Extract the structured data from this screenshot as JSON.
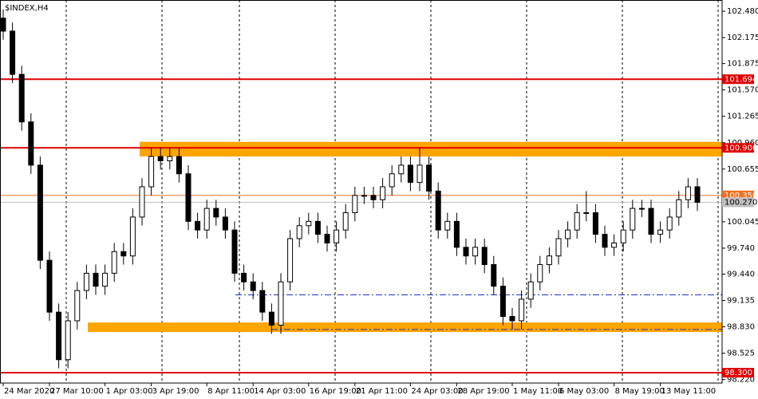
{
  "chart_data": {
    "type": "candlestick",
    "title": "$INDEX,H4",
    "categories": [
      "24 Mar 2020",
      null,
      null,
      null,
      null,
      "27 Mar 10:00",
      null,
      null,
      null,
      null,
      null,
      "1 Apr 03:00",
      null,
      null,
      null,
      null,
      "3 Apr 19:00",
      null,
      null,
      null,
      null,
      null,
      "8 Apr 11:00",
      null,
      null,
      null,
      null,
      "14 Apr 03:00",
      null,
      null,
      null,
      null,
      null,
      "16 Apr 19:00",
      null,
      null,
      null,
      null,
      "21 Apr 11:00",
      null,
      null,
      null,
      null,
      null,
      "24 Apr 03:00",
      null,
      null,
      null,
      null,
      "28 Apr 19:00",
      null,
      null,
      null,
      null,
      null,
      "1 May 11:00",
      null,
      null,
      null,
      null,
      "6 May 03:00",
      null,
      null,
      null,
      null,
      null,
      "8 May 19:00",
      null,
      null,
      null,
      null,
      "13 May 11:00",
      null,
      null,
      null,
      null
    ],
    "open": [
      102.4,
      102.25,
      101.75,
      101.2,
      100.7,
      99.6,
      99.0,
      98.45,
      98.9,
      99.25,
      99.45,
      99.3,
      99.45,
      99.7,
      99.65,
      100.1,
      100.45,
      100.8,
      100.75,
      100.8,
      100.6,
      100.05,
      99.95,
      100.2,
      100.1,
      99.95,
      99.45,
      99.35,
      99.25,
      99.0,
      98.85,
      99.35,
      99.85,
      100.0,
      100.05,
      99.9,
      99.8,
      99.95,
      100.15,
      100.35,
      100.35,
      100.3,
      100.45,
      100.6,
      100.7,
      100.5,
      100.7,
      100.4,
      99.95,
      100.05,
      99.75,
      99.65,
      99.75,
      99.55,
      99.3,
      98.95,
      98.9,
      99.15,
      99.35,
      99.55,
      99.65,
      99.85,
      99.95,
      100.15,
      100.15,
      99.9,
      99.75,
      99.8,
      99.95,
      100.2,
      100.2,
      99.9,
      99.95,
      100.1,
      100.3,
      100.45
    ],
    "high": [
      102.5,
      102.35,
      101.85,
      101.3,
      100.8,
      99.7,
      99.1,
      99.0,
      99.35,
      99.55,
      99.55,
      99.55,
      99.8,
      99.8,
      100.2,
      100.55,
      100.9,
      100.9,
      100.9,
      100.9,
      100.7,
      100.15,
      100.3,
      100.3,
      100.2,
      100.05,
      99.55,
      99.45,
      99.35,
      99.1,
      99.45,
      99.95,
      100.1,
      100.15,
      100.15,
      100.0,
      100.05,
      100.25,
      100.45,
      100.45,
      100.45,
      100.55,
      100.7,
      100.8,
      100.8,
      100.9,
      100.8,
      100.5,
      100.15,
      100.15,
      99.85,
      99.85,
      99.85,
      99.65,
      99.4,
      99.05,
      99.25,
      99.45,
      99.65,
      99.75,
      99.95,
      100.05,
      100.25,
      100.4,
      100.25,
      100.0,
      99.9,
      100.05,
      100.3,
      100.3,
      100.3,
      100.05,
      100.2,
      100.4,
      100.55,
      100.55
    ],
    "low": [
      102.15,
      101.65,
      101.1,
      100.6,
      99.5,
      98.9,
      98.35,
      98.35,
      98.8,
      99.15,
      99.2,
      99.2,
      99.35,
      99.55,
      99.55,
      100.0,
      100.35,
      100.65,
      100.65,
      100.5,
      99.95,
      99.85,
      99.85,
      100.0,
      99.85,
      99.35,
      99.25,
      99.15,
      98.9,
      98.75,
      98.75,
      99.25,
      99.75,
      99.9,
      99.8,
      99.7,
      99.7,
      99.85,
      100.05,
      100.25,
      100.2,
      100.2,
      100.35,
      100.5,
      100.4,
      100.4,
      100.3,
      99.85,
      99.85,
      99.65,
      99.55,
      99.55,
      99.45,
      99.2,
      98.85,
      98.8,
      98.8,
      99.05,
      99.25,
      99.45,
      99.55,
      99.75,
      99.85,
      100.05,
      99.8,
      99.65,
      99.65,
      99.7,
      99.85,
      100.1,
      99.8,
      99.8,
      99.85,
      100.0,
      100.2,
      100.17
    ],
    "close": [
      102.25,
      101.75,
      101.2,
      100.7,
      99.6,
      99.0,
      98.45,
      98.9,
      99.25,
      99.45,
      99.3,
      99.45,
      99.7,
      99.65,
      100.1,
      100.45,
      100.8,
      100.75,
      100.8,
      100.6,
      100.05,
      99.95,
      100.2,
      100.1,
      99.95,
      99.45,
      99.35,
      99.25,
      99.0,
      98.85,
      99.35,
      99.85,
      100.0,
      100.05,
      99.9,
      99.8,
      99.95,
      100.15,
      100.35,
      100.35,
      100.3,
      100.45,
      100.6,
      100.7,
      100.5,
      100.7,
      100.4,
      99.95,
      100.05,
      99.75,
      99.65,
      99.75,
      99.55,
      99.3,
      98.95,
      98.9,
      99.15,
      99.35,
      99.55,
      99.65,
      99.85,
      99.95,
      100.15,
      100.15,
      99.9,
      99.75,
      99.8,
      99.95,
      100.2,
      100.2,
      99.9,
      99.95,
      100.1,
      100.3,
      100.45,
      100.27
    ],
    "up_color": "#ffffff",
    "down_color": "#000000",
    "wick_color": "#000000",
    "ylim": [
      98.18,
      102.61
    ],
    "yticks": [
      {
        "value": 102.48,
        "label": "102.480"
      },
      {
        "value": 102.175,
        "label": "102.175"
      },
      {
        "value": 101.875,
        "label": "101.875"
      },
      {
        "value": 101.57,
        "label": "101.570"
      },
      {
        "value": 101.265,
        "label": "101.265"
      },
      {
        "value": 100.96,
        "label": "100.960"
      },
      {
        "value": 100.655,
        "label": "100.655"
      },
      {
        "value": 100.045,
        "label": "100.045"
      },
      {
        "value": 99.74,
        "label": "99.740"
      },
      {
        "value": 99.44,
        "label": "99.440"
      },
      {
        "value": 99.135,
        "label": "99.135"
      },
      {
        "value": 98.83,
        "label": "98.830"
      },
      {
        "value": 98.525,
        "label": "98.525"
      },
      {
        "value": 98.22,
        "label": "98.220"
      }
    ],
    "levels": [
      {
        "value": 101.694,
        "label": "101.694",
        "color": "#e00000"
      },
      {
        "value": 100.9,
        "label": "100.900",
        "color": "#e00000"
      },
      {
        "value": 100.35,
        "label": "100.350",
        "color": "#f07020"
      },
      {
        "value": 100.27,
        "label": "100.270",
        "color": "#c0c0c0"
      },
      {
        "value": 98.3,
        "label": "98.300",
        "color": "#e00000"
      }
    ],
    "zones": [
      {
        "from": 100.8,
        "to": 100.97,
        "color": "#ffa500"
      },
      {
        "from": 98.77,
        "to": 98.88,
        "color": "#ffa500"
      }
    ],
    "dash_lines": [
      {
        "value": 99.2,
        "color": "#2030c0"
      },
      {
        "value": 98.8,
        "color": "#2030c0"
      }
    ]
  }
}
